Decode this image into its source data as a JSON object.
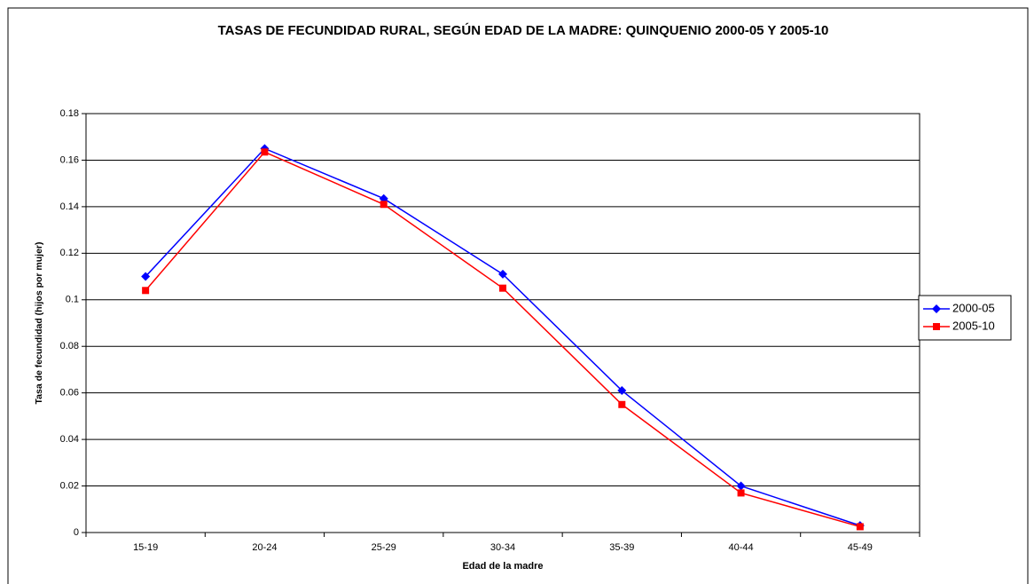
{
  "chart_data": {
    "type": "line",
    "title": "TASAS DE FECUNDIDAD RURAL,  SEGÚN EDAD DE LA MADRE:   QUINQUENIO 2000-05 Y 2005-10",
    "x_label": "Edad de la madre",
    "y_label": "Tasa de fecundidad (hijos por mujer)",
    "categories": [
      "15-19",
      "20-24",
      "25-29",
      "30-34",
      "35-39",
      "40-44",
      "45-49"
    ],
    "series": [
      {
        "name": "2000-05",
        "color": "#0000ff",
        "marker": "diamond",
        "values": [
          0.11,
          0.165,
          0.1435,
          0.111,
          0.061,
          0.02,
          0.003
        ]
      },
      {
        "name": "2005-10",
        "color": "#ff0000",
        "marker": "square",
        "values": [
          0.104,
          0.1635,
          0.141,
          0.105,
          0.055,
          0.017,
          0.0025
        ]
      }
    ],
    "ylim": [
      0,
      0.18
    ],
    "yticks": [
      0,
      0.02,
      0.04,
      0.06,
      0.08,
      0.1,
      0.12,
      0.14,
      0.16,
      0.18
    ],
    "grid": true,
    "legend": "right"
  }
}
